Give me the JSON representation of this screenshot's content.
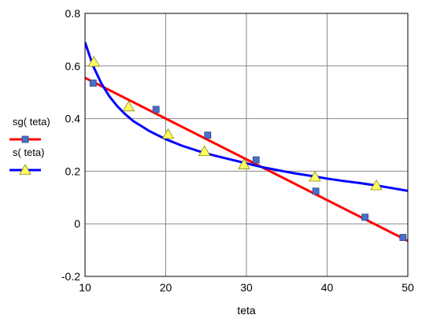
{
  "chart_data": {
    "type": "line",
    "xlabel": "teta",
    "ylabel": "",
    "xlim": [
      10,
      50
    ],
    "ylim": [
      -0.2,
      0.8
    ],
    "x_ticks": [
      "10",
      "20",
      "30",
      "40",
      "50"
    ],
    "y_ticks": [
      "-0.2",
      "0",
      "0.2",
      "0.4",
      "0.6",
      "0.8"
    ],
    "grid": true,
    "legend_position": "left",
    "series": [
      {
        "name": "sg( teta)",
        "color": "#ff0000",
        "marker": "square",
        "marker_color": "#4a6fc8",
        "line": [
          [
            10,
            0.555
          ],
          [
            50,
            -0.065
          ]
        ],
        "markers": [
          [
            11,
            0.535
          ],
          [
            18.8,
            0.435
          ],
          [
            25.2,
            0.337
          ],
          [
            31.2,
            0.243
          ],
          [
            38.6,
            0.124
          ],
          [
            44.7,
            0.025
          ],
          [
            49.4,
            -0.052
          ]
        ]
      },
      {
        "name": "s( teta)",
        "color": "#0000ff",
        "marker": "triangle",
        "marker_color": "#ffff66",
        "line": [
          [
            10,
            0.69
          ],
          [
            11,
            0.6
          ],
          [
            12,
            0.535
          ],
          [
            13,
            0.485
          ],
          [
            14,
            0.447
          ],
          [
            15,
            0.416
          ],
          [
            16,
            0.39
          ],
          [
            18,
            0.352
          ],
          [
            20,
            0.322
          ],
          [
            22,
            0.297
          ],
          [
            24,
            0.277
          ],
          [
            26,
            0.26
          ],
          [
            28,
            0.245
          ],
          [
            30,
            0.23
          ],
          [
            32,
            0.215
          ],
          [
            34,
            0.203
          ],
          [
            36,
            0.192
          ],
          [
            38,
            0.182
          ],
          [
            40,
            0.172
          ],
          [
            42,
            0.163
          ],
          [
            44,
            0.155
          ],
          [
            46,
            0.146
          ],
          [
            48,
            0.136
          ],
          [
            50,
            0.125
          ]
        ],
        "markers": [
          [
            11.1,
            0.615
          ],
          [
            15.4,
            0.445
          ],
          [
            20.3,
            0.34
          ],
          [
            24.8,
            0.275
          ],
          [
            29.7,
            0.225
          ],
          [
            38.5,
            0.178
          ],
          [
            46.1,
            0.145
          ]
        ]
      }
    ]
  }
}
